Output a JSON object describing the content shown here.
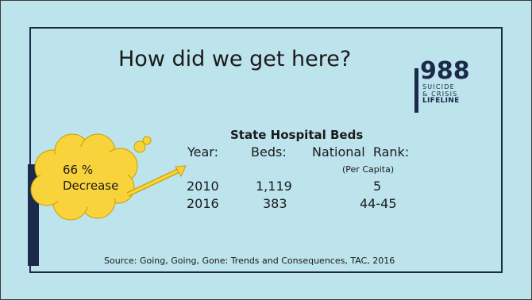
{
  "slide": {
    "title": "How did we get here?",
    "source": "Source: Going, Going, Gone: Trends and Consequences, TAC, 2016"
  },
  "logo": {
    "number": "988",
    "line1": "SUICIDE",
    "line2": "& CRISIS",
    "line3": "LIFELINE"
  },
  "table": {
    "title": "State Hospital Beds",
    "headers": {
      "year": "Year:",
      "beds": "Beds:",
      "rank": "National  Rank:",
      "rank_note": "(Per Capita)"
    },
    "rows": [
      {
        "year": "2010",
        "beds": "1,119",
        "rank": "5"
      },
      {
        "year": "2016",
        "beds": "383",
        "rank": "44-45"
      }
    ]
  },
  "callout": {
    "line1": "66 %",
    "line2": "Decrease"
  },
  "colors": {
    "background": "#bde3ec",
    "frame": "#1b2a4a",
    "cloud": "#f9d33b",
    "cloud_outline": "#c9a000"
  }
}
